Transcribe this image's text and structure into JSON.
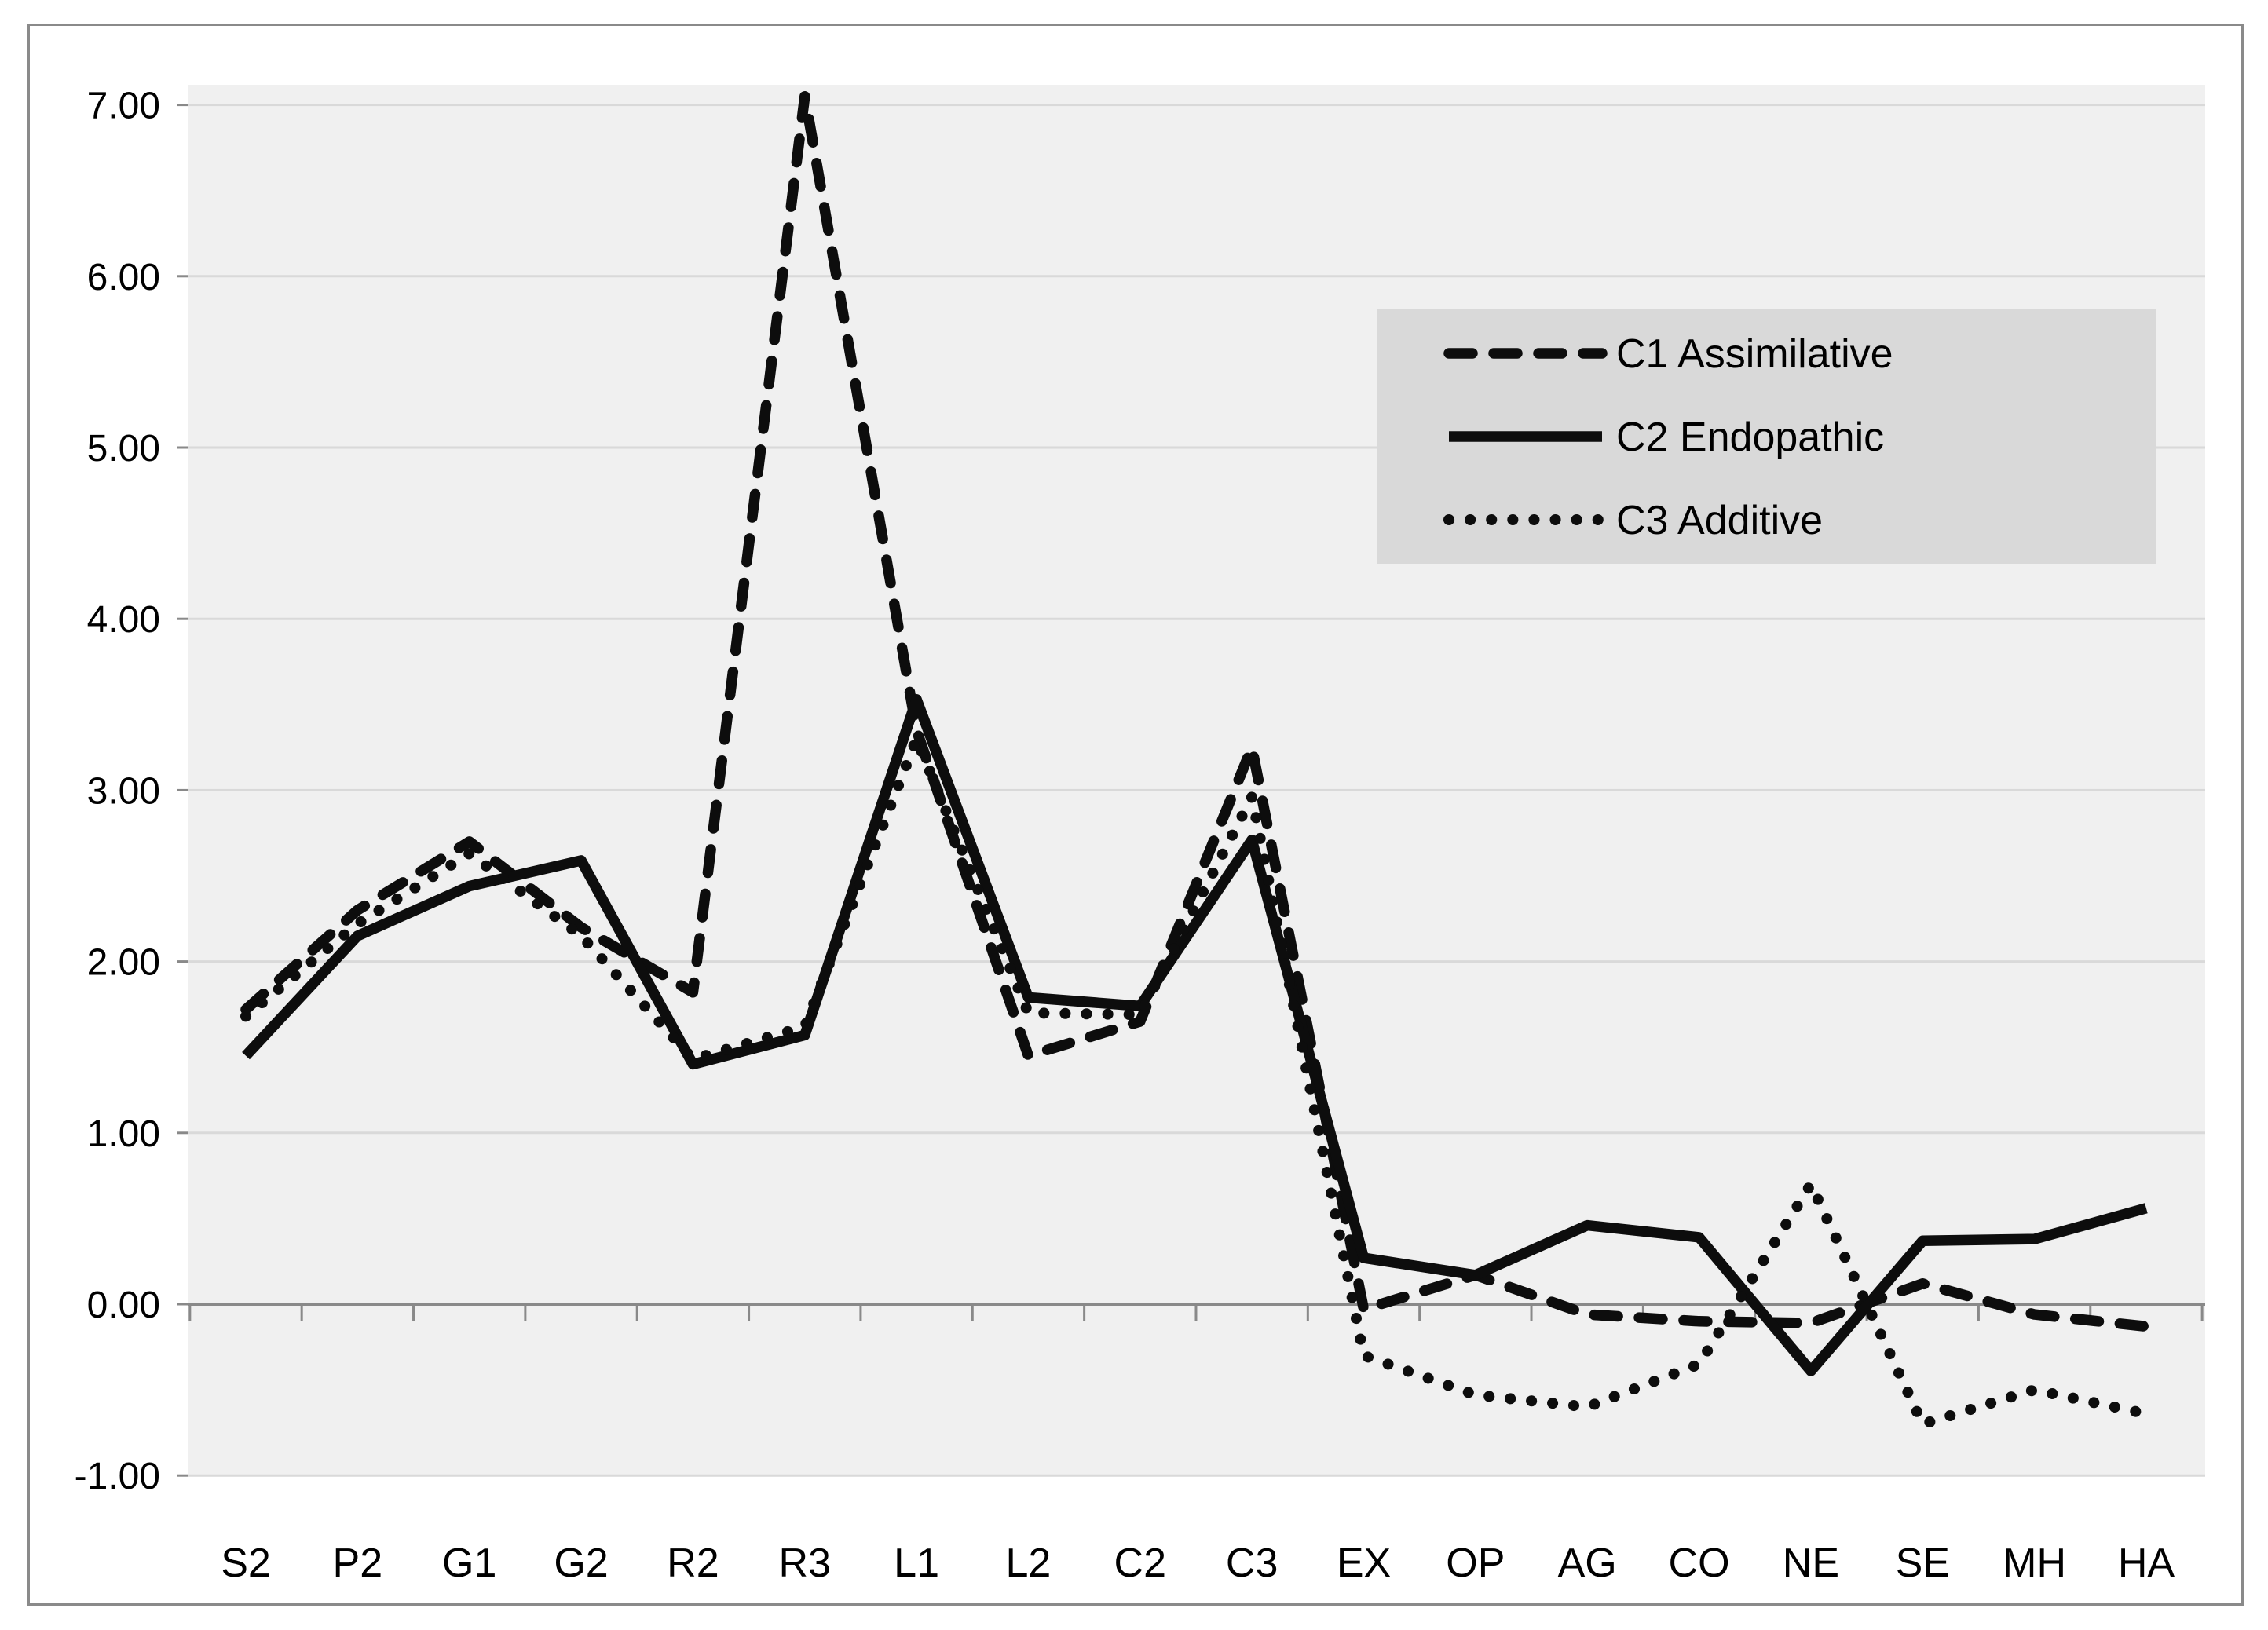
{
  "window": {
    "background_color": "#ffffff",
    "border_color": "#8a8a8a"
  },
  "chart_data": {
    "type": "line",
    "title": "",
    "xlabel": "",
    "ylabel": "",
    "categories": [
      "S2",
      "P2",
      "G1",
      "G2",
      "R2",
      "R3",
      "L1",
      "L2",
      "C2",
      "C3",
      "EX",
      "OP",
      "AG",
      "CO",
      "NE",
      "SE",
      "MH",
      "HA"
    ],
    "series": [
      {
        "name": "C1 Assimilative",
        "line_style": "dashed",
        "color": "#0d0d0d",
        "values": [
          1.72,
          2.3,
          2.7,
          2.2,
          1.82,
          7.05,
          3.35,
          1.45,
          1.65,
          3.25,
          -0.03,
          0.17,
          -0.06,
          -0.1,
          -0.11,
          0.12,
          -0.06,
          -0.13
        ]
      },
      {
        "name": "C2 Endopathic",
        "line_style": "solid",
        "color": "#0d0d0d",
        "values": [
          1.45,
          2.15,
          2.44,
          2.59,
          1.4,
          1.57,
          3.53,
          1.79,
          1.74,
          2.71,
          0.27,
          0.17,
          0.46,
          0.39,
          -0.39,
          0.37,
          0.38,
          0.56
        ]
      },
      {
        "name": "C3 Additive",
        "line_style": "dotted",
        "color": "#0d0d0d",
        "values": [
          1.68,
          2.22,
          2.63,
          2.15,
          1.43,
          1.62,
          3.3,
          1.7,
          1.69,
          2.96,
          -0.3,
          -0.53,
          -0.6,
          -0.35,
          0.7,
          -0.7,
          -0.5,
          -0.64
        ]
      }
    ],
    "ylim": [
      -1,
      7
    ],
    "ytick_step": 1,
    "ytick_labels": [
      "7.00",
      "6.00",
      "5.00",
      "4.00",
      "3.00",
      "2.00",
      "1.00",
      "0.00",
      "-1.00"
    ],
    "ytick_values": [
      7,
      6,
      5,
      4,
      3,
      2,
      1,
      0,
      -1
    ],
    "grid": true,
    "legend_position": "upper-right",
    "colors": {
      "plot_background": "#f0f0f0",
      "gridline": "#d9d9d9",
      "axis_line": "#898989",
      "tick": "#898989",
      "legend_background": "#d9d9d9",
      "line": "#0d0d0d"
    }
  }
}
